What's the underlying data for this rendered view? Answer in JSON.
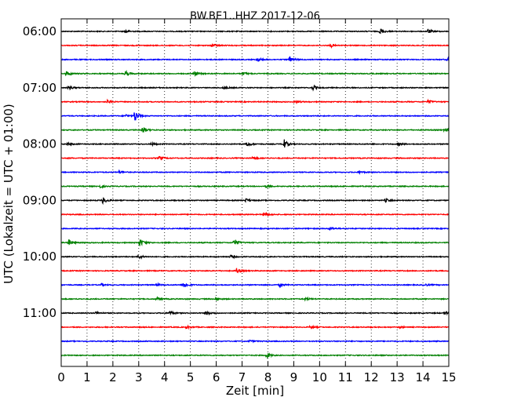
{
  "chart_data": {
    "type": "line",
    "chart_kind": "seismogram helicorder (dayplot)",
    "title": "BW.BE1..HHZ 2017-12-06",
    "xlabel": "Zeit  [min]",
    "ylabel": "UTC (Lokalzeit = UTC + 01:00)",
    "xlim": [
      0,
      15
    ],
    "x_ticks": [
      "0",
      "1",
      "2",
      "3",
      "4",
      "5",
      "6",
      "7",
      "8",
      "9",
      "10",
      "11",
      "12",
      "13",
      "14",
      "15"
    ],
    "y_tick_labels": [
      "06:00",
      "07:00",
      "08:00",
      "09:00",
      "10:00",
      "11:00"
    ],
    "grid": "vertical dotted lines at each minute",
    "colors": [
      "#000000",
      "#ff0000",
      "#0000ff",
      "#008000"
    ],
    "trace_start_times": [
      "06:00",
      "06:15",
      "06:30",
      "06:45",
      "07:00",
      "07:15",
      "07:30",
      "07:45",
      "08:00",
      "08:15",
      "08:30",
      "08:45",
      "09:00",
      "09:15",
      "09:30",
      "09:45",
      "10:00",
      "10:15",
      "10:30",
      "10:45",
      "11:00",
      "11:15",
      "11:30",
      "11:45"
    ],
    "events": [
      [
        {
          "t": 2.5,
          "a": 0.5
        },
        {
          "t": 12.35,
          "a": 0.8
        },
        {
          "t": 14.2,
          "a": 0.6
        }
      ],
      [
        {
          "t": 5.85,
          "a": 0.6
        },
        {
          "t": 10.45,
          "a": 0.4
        }
      ],
      [
        {
          "t": 7.6,
          "a": 0.6
        },
        {
          "t": 8.85,
          "a": 0.8
        },
        {
          "t": 14.95,
          "a": 0.4
        }
      ],
      [
        {
          "t": 0.2,
          "a": 0.7
        },
        {
          "t": 2.5,
          "a": 0.7
        },
        {
          "t": 5.15,
          "a": 0.8
        },
        {
          "t": 7.05,
          "a": 0.4
        }
      ],
      [
        {
          "t": 0.3,
          "a": 0.5
        },
        {
          "t": 6.3,
          "a": 0.4
        },
        {
          "t": 9.75,
          "a": 0.6
        }
      ],
      [
        {
          "t": 1.8,
          "a": 0.5
        },
        {
          "t": 9.1,
          "a": 0.3
        },
        {
          "t": 14.2,
          "a": 0.5
        }
      ],
      [
        {
          "t": 2.85,
          "a": 1.8
        },
        {
          "t": 2.5,
          "a": 0.4
        }
      ],
      [
        {
          "t": 3.15,
          "a": 1.0
        },
        {
          "t": 14.85,
          "a": 0.6
        }
      ],
      [
        {
          "t": 0.25,
          "a": 0.4
        },
        {
          "t": 3.5,
          "a": 0.4
        },
        {
          "t": 7.2,
          "a": 0.6
        },
        {
          "t": 8.6,
          "a": 1.6
        },
        {
          "t": 13.05,
          "a": 0.4
        }
      ],
      [
        {
          "t": 3.8,
          "a": 0.6
        },
        {
          "t": 7.4,
          "a": 0.4
        }
      ],
      [
        {
          "t": 2.25,
          "a": 0.4
        },
        {
          "t": 11.55,
          "a": 0.3
        }
      ],
      [
        {
          "t": 1.5,
          "a": 0.4
        },
        {
          "t": 7.95,
          "a": 0.4
        }
      ],
      [
        {
          "t": 1.6,
          "a": 0.9
        },
        {
          "t": 7.15,
          "a": 0.5
        },
        {
          "t": 12.55,
          "a": 0.5
        }
      ],
      [
        {
          "t": 7.85,
          "a": 0.7
        }
      ],
      [
        {
          "t": 10.4,
          "a": 0.4
        }
      ],
      [
        {
          "t": 0.3,
          "a": 0.8
        },
        {
          "t": 3.05,
          "a": 1.1
        },
        {
          "t": 6.7,
          "a": 1.0
        }
      ],
      [
        {
          "t": 3.0,
          "a": 0.6
        },
        {
          "t": 6.55,
          "a": 0.4
        }
      ],
      [
        {
          "t": 6.8,
          "a": 0.7
        }
      ],
      [
        {
          "t": 1.55,
          "a": 0.4
        },
        {
          "t": 3.7,
          "a": 0.4
        },
        {
          "t": 4.75,
          "a": 1.0
        },
        {
          "t": 8.45,
          "a": 0.5
        },
        {
          "t": 14.05,
          "a": 0.4
        }
      ],
      [
        {
          "t": 3.7,
          "a": 0.5
        },
        {
          "t": 6.0,
          "a": 0.4
        },
        {
          "t": 9.45,
          "a": 0.4
        }
      ],
      [
        {
          "t": 1.35,
          "a": 0.4
        },
        {
          "t": 4.2,
          "a": 0.6
        },
        {
          "t": 5.6,
          "a": 0.6
        },
        {
          "t": 14.85,
          "a": 0.5
        }
      ],
      [
        {
          "t": 4.85,
          "a": 0.4
        },
        {
          "t": 9.65,
          "a": 0.4
        },
        {
          "t": 13.1,
          "a": 0.3
        }
      ],
      [
        {
          "t": 7.3,
          "a": 0.3
        }
      ],
      [
        {
          "t": 7.95,
          "a": 0.7
        }
      ]
    ]
  }
}
